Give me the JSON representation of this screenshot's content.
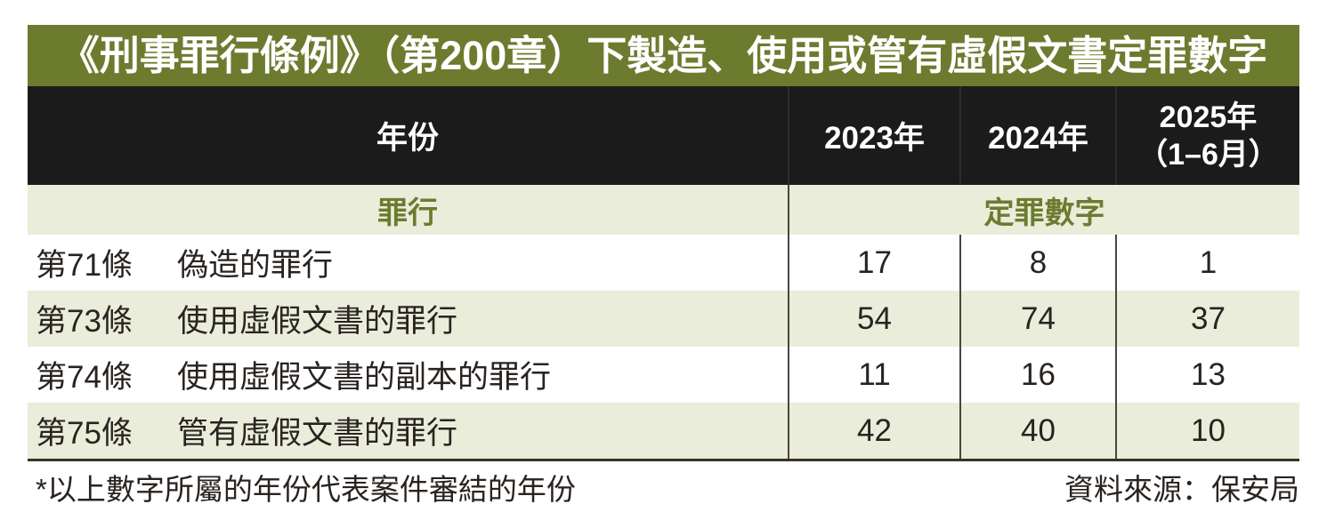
{
  "chart_data": {
    "type": "table",
    "title": "《刑事罪行條例》（第200章）下製造、使用或管有虛假文書定罪數字",
    "header": {
      "year_label": "年份",
      "years": [
        {
          "label": "2023年",
          "sublabel": ""
        },
        {
          "label": "2024年",
          "sublabel": ""
        },
        {
          "label": "2025年",
          "sublabel": "（1–6月）"
        }
      ],
      "offence_label": "罪行",
      "convictions_label": "定罪數字"
    },
    "rows": [
      {
        "section": "第71條",
        "offence": "偽造的罪行",
        "values": [
          17,
          8,
          1
        ]
      },
      {
        "section": "第73條",
        "offence": "使用虛假文書的罪行",
        "values": [
          54,
          74,
          37
        ]
      },
      {
        "section": "第74條",
        "offence": "使用虛假文書的副本的罪行",
        "values": [
          11,
          16,
          13
        ]
      },
      {
        "section": "第75條",
        "offence": "管有虛假文書的罪行",
        "values": [
          42,
          40,
          10
        ]
      }
    ],
    "footnote": "*以上數字所屬的年份代表案件審結的年份",
    "source": "資料來源：保安局"
  },
  "colors": {
    "title_bg": "#6d7b2f",
    "header_bg": "#1b1b1c",
    "shaded_row_bg": "#e9edda",
    "accent_text": "#6d7b2f",
    "body_text": "#292320"
  }
}
